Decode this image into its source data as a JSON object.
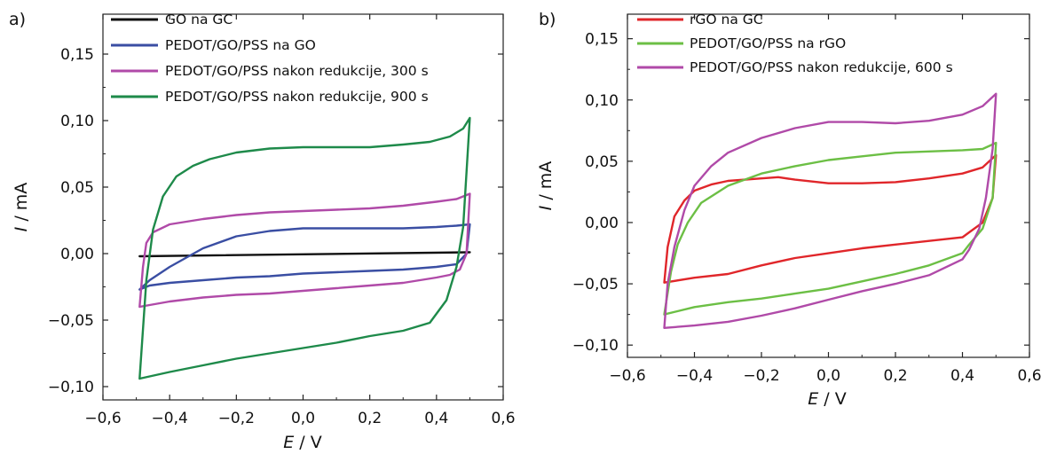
{
  "chart_data": [
    {
      "panel": "a)",
      "type": "line",
      "xlabel": "E / V",
      "ylabel": "I / mA",
      "xlim": [
        -0.6,
        0.6
      ],
      "ylim": [
        -0.11,
        0.18
      ],
      "xticks": [
        -0.6,
        -0.4,
        -0.2,
        0.0,
        0.2,
        0.4,
        0.6
      ],
      "xtick_labels": [
        "−0,6",
        "−0,4",
        "−0,2",
        "0,0",
        "0,2",
        "0,4",
        "0,6"
      ],
      "yticks": [
        -0.1,
        -0.05,
        0.0,
        0.05,
        0.1,
        0.15
      ],
      "ytick_labels": [
        "−0,10",
        "−0,05",
        "0,00",
        "0,05",
        "0,10",
        "0,15"
      ],
      "legend_position": "top",
      "series": [
        {
          "name": "GO na GC",
          "color": "#111111",
          "points": [
            [
              -0.49,
              -0.002
            ],
            [
              0.5,
              0.001
            ],
            [
              -0.49,
              -0.002
            ]
          ]
        },
        {
          "name": "PEDOT/GO/PSS na GO",
          "color": "#3a4ea3",
          "points": [
            [
              -0.49,
              -0.027
            ],
            [
              -0.46,
              -0.02
            ],
            [
              -0.4,
              -0.01
            ],
            [
              -0.3,
              0.004
            ],
            [
              -0.2,
              0.013
            ],
            [
              -0.1,
              0.017
            ],
            [
              0.0,
              0.019
            ],
            [
              0.1,
              0.019
            ],
            [
              0.2,
              0.019
            ],
            [
              0.3,
              0.019
            ],
            [
              0.4,
              0.02
            ],
            [
              0.46,
              0.021
            ],
            [
              0.5,
              0.022
            ],
            [
              0.49,
              0.0
            ],
            [
              0.46,
              -0.008
            ],
            [
              0.4,
              -0.01
            ],
            [
              0.3,
              -0.012
            ],
            [
              0.2,
              -0.013
            ],
            [
              0.1,
              -0.014
            ],
            [
              0.0,
              -0.015
            ],
            [
              -0.1,
              -0.017
            ],
            [
              -0.2,
              -0.018
            ],
            [
              -0.3,
              -0.02
            ],
            [
              -0.4,
              -0.022
            ],
            [
              -0.46,
              -0.024
            ],
            [
              -0.49,
              -0.027
            ]
          ]
        },
        {
          "name": "PEDOT/GO/PSS nakon redukcije, 300 s",
          "color": "#b04aa8",
          "points": [
            [
              -0.49,
              -0.04
            ],
            [
              -0.48,
              -0.01
            ],
            [
              -0.47,
              0.008
            ],
            [
              -0.45,
              0.016
            ],
            [
              -0.4,
              0.022
            ],
            [
              -0.3,
              0.026
            ],
            [
              -0.2,
              0.029
            ],
            [
              -0.1,
              0.031
            ],
            [
              0.0,
              0.032
            ],
            [
              0.1,
              0.033
            ],
            [
              0.2,
              0.034
            ],
            [
              0.3,
              0.036
            ],
            [
              0.4,
              0.039
            ],
            [
              0.46,
              0.041
            ],
            [
              0.5,
              0.045
            ],
            [
              0.49,
              0.0
            ],
            [
              0.47,
              -0.012
            ],
            [
              0.44,
              -0.016
            ],
            [
              0.4,
              -0.018
            ],
            [
              0.3,
              -0.022
            ],
            [
              0.2,
              -0.024
            ],
            [
              0.1,
              -0.026
            ],
            [
              0.0,
              -0.028
            ],
            [
              -0.1,
              -0.03
            ],
            [
              -0.2,
              -0.031
            ],
            [
              -0.3,
              -0.033
            ],
            [
              -0.4,
              -0.036
            ],
            [
              -0.49,
              -0.04
            ]
          ]
        },
        {
          "name": "PEDOT/GO/PSS nakon redukcije, 900 s",
          "color": "#1e8a4a",
          "points": [
            [
              -0.49,
              -0.094
            ],
            [
              -0.47,
              -0.02
            ],
            [
              -0.45,
              0.018
            ],
            [
              -0.42,
              0.043
            ],
            [
              -0.38,
              0.058
            ],
            [
              -0.33,
              0.066
            ],
            [
              -0.28,
              0.071
            ],
            [
              -0.2,
              0.076
            ],
            [
              -0.1,
              0.079
            ],
            [
              0.0,
              0.08
            ],
            [
              0.1,
              0.08
            ],
            [
              0.2,
              0.08
            ],
            [
              0.3,
              0.082
            ],
            [
              0.38,
              0.084
            ],
            [
              0.44,
              0.088
            ],
            [
              0.48,
              0.094
            ],
            [
              0.5,
              0.102
            ],
            [
              0.48,
              0.02
            ],
            [
              0.46,
              -0.01
            ],
            [
              0.43,
              -0.035
            ],
            [
              0.38,
              -0.052
            ],
            [
              0.3,
              -0.058
            ],
            [
              0.2,
              -0.062
            ],
            [
              0.1,
              -0.067
            ],
            [
              0.0,
              -0.071
            ],
            [
              -0.1,
              -0.075
            ],
            [
              -0.2,
              -0.079
            ],
            [
              -0.3,
              -0.084
            ],
            [
              -0.4,
              -0.089
            ],
            [
              -0.49,
              -0.094
            ]
          ]
        }
      ]
    },
    {
      "panel": "b)",
      "type": "line",
      "xlabel": "E / V",
      "ylabel": "I / mA",
      "xlim": [
        -0.6,
        0.6
      ],
      "ylim": [
        -0.11,
        0.17
      ],
      "xticks": [
        -0.6,
        -0.4,
        -0.2,
        0.0,
        0.2,
        0.4,
        0.6
      ],
      "xtick_labels": [
        "−0,6",
        "−0,4",
        "−0,2",
        "0,0",
        "0,2",
        "0,4",
        "0,6"
      ],
      "yticks": [
        -0.1,
        -0.05,
        0.0,
        0.05,
        0.1,
        0.15
      ],
      "ytick_labels": [
        "−0,10",
        "−0,05",
        "0,00",
        "0,05",
        "0,10",
        "0,15"
      ],
      "legend_position": "top",
      "series": [
        {
          "name": "rGO na GC",
          "color": "#e0262a",
          "points": [
            [
              -0.49,
              -0.049
            ],
            [
              -0.48,
              -0.02
            ],
            [
              -0.46,
              0.005
            ],
            [
              -0.43,
              0.018
            ],
            [
              -0.4,
              0.026
            ],
            [
              -0.35,
              0.031
            ],
            [
              -0.3,
              0.034
            ],
            [
              -0.2,
              0.036
            ],
            [
              -0.15,
              0.037
            ],
            [
              -0.1,
              0.035
            ],
            [
              0.0,
              0.032
            ],
            [
              0.1,
              0.032
            ],
            [
              0.2,
              0.033
            ],
            [
              0.3,
              0.036
            ],
            [
              0.4,
              0.04
            ],
            [
              0.46,
              0.045
            ],
            [
              0.5,
              0.055
            ],
            [
              0.49,
              0.02
            ],
            [
              0.46,
              0.0
            ],
            [
              0.42,
              -0.008
            ],
            [
              0.4,
              -0.012
            ],
            [
              0.3,
              -0.015
            ],
            [
              0.2,
              -0.018
            ],
            [
              0.1,
              -0.021
            ],
            [
              0.0,
              -0.025
            ],
            [
              -0.1,
              -0.029
            ],
            [
              -0.2,
              -0.035
            ],
            [
              -0.3,
              -0.042
            ],
            [
              -0.4,
              -0.045
            ],
            [
              -0.49,
              -0.049
            ]
          ]
        },
        {
          "name": "PEDOT/GO/PSS na rGO",
          "color": "#6cbf45",
          "points": [
            [
              -0.49,
              -0.075
            ],
            [
              -0.47,
              -0.04
            ],
            [
              -0.45,
              -0.018
            ],
            [
              -0.42,
              0.0
            ],
            [
              -0.38,
              0.016
            ],
            [
              -0.3,
              0.03
            ],
            [
              -0.2,
              0.04
            ],
            [
              -0.1,
              0.046
            ],
            [
              0.0,
              0.051
            ],
            [
              0.1,
              0.054
            ],
            [
              0.2,
              0.057
            ],
            [
              0.3,
              0.058
            ],
            [
              0.4,
              0.059
            ],
            [
              0.46,
              0.06
            ],
            [
              0.5,
              0.065
            ],
            [
              0.49,
              0.02
            ],
            [
              0.46,
              -0.005
            ],
            [
              0.42,
              -0.018
            ],
            [
              0.4,
              -0.025
            ],
            [
              0.3,
              -0.035
            ],
            [
              0.2,
              -0.042
            ],
            [
              0.1,
              -0.048
            ],
            [
              0.0,
              -0.054
            ],
            [
              -0.1,
              -0.058
            ],
            [
              -0.2,
              -0.062
            ],
            [
              -0.3,
              -0.065
            ],
            [
              -0.4,
              -0.069
            ],
            [
              -0.49,
              -0.075
            ]
          ]
        },
        {
          "name": "PEDOT/GO/PSS nakon redukcije, 600 s",
          "color": "#b04aa8",
          "points": [
            [
              -0.49,
              -0.086
            ],
            [
              -0.48,
              -0.05
            ],
            [
              -0.46,
              -0.02
            ],
            [
              -0.43,
              0.01
            ],
            [
              -0.4,
              0.03
            ],
            [
              -0.35,
              0.046
            ],
            [
              -0.3,
              0.057
            ],
            [
              -0.2,
              0.069
            ],
            [
              -0.1,
              0.077
            ],
            [
              0.0,
              0.082
            ],
            [
              0.1,
              0.082
            ],
            [
              0.2,
              0.081
            ],
            [
              0.3,
              0.083
            ],
            [
              0.4,
              0.088
            ],
            [
              0.46,
              0.095
            ],
            [
              0.5,
              0.105
            ],
            [
              0.49,
              0.06
            ],
            [
              0.47,
              0.02
            ],
            [
              0.45,
              -0.005
            ],
            [
              0.42,
              -0.022
            ],
            [
              0.4,
              -0.03
            ],
            [
              0.3,
              -0.043
            ],
            [
              0.2,
              -0.05
            ],
            [
              0.1,
              -0.056
            ],
            [
              0.0,
              -0.063
            ],
            [
              -0.1,
              -0.07
            ],
            [
              -0.2,
              -0.076
            ],
            [
              -0.3,
              -0.081
            ],
            [
              -0.4,
              -0.084
            ],
            [
              -0.49,
              -0.086
            ]
          ]
        }
      ]
    }
  ]
}
